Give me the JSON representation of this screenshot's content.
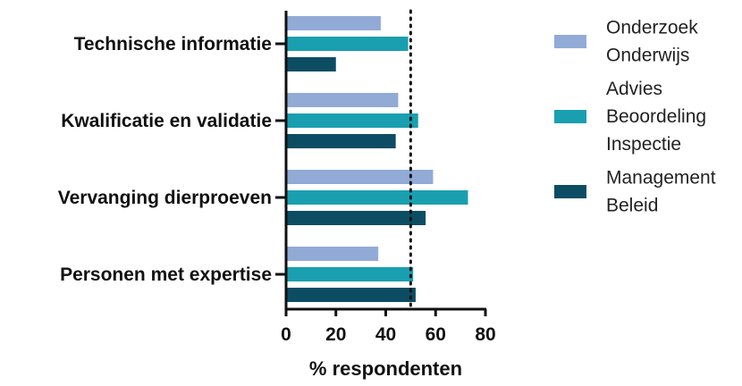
{
  "chart_data": {
    "type": "bar",
    "orientation": "horizontal",
    "categories": [
      "Technische informatie",
      "Kwalificatie en validatie",
      "Vervanging dierproeven",
      "Personen met expertise"
    ],
    "series": [
      {
        "name": "Onderzoek Onderwijs",
        "label_lines": [
          "Onderzoek",
          "Onderwijs"
        ],
        "color": "#92aad6",
        "values": [
          38,
          45,
          59,
          37
        ]
      },
      {
        "name": "Advies Beoordeling Inspectie",
        "label_lines": [
          "Advies",
          "Beoordeling",
          "Inspectie"
        ],
        "color": "#1a9fb0",
        "values": [
          49,
          53,
          73,
          51
        ]
      },
      {
        "name": "Management Beleid",
        "label_lines": [
          "Management",
          "Beleid"
        ],
        "color": "#0c4d63",
        "values": [
          20,
          44,
          56,
          52
        ]
      }
    ],
    "xlabel": "% respondenten",
    "ylabel": "",
    "xlim": [
      0,
      80
    ],
    "xticks": [
      0,
      20,
      40,
      60,
      80
    ],
    "reference_line": {
      "value": 50,
      "style": "dotted"
    },
    "grid": false,
    "legend": "right"
  }
}
